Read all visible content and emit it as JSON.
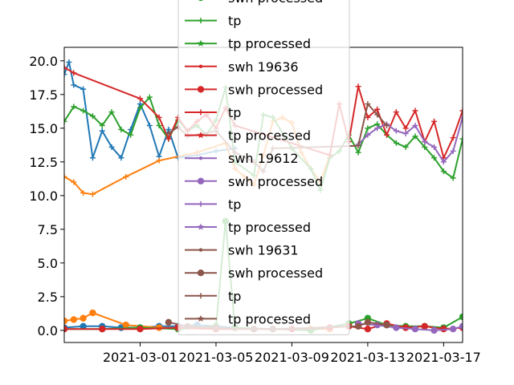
{
  "chart_data": {
    "type": "line",
    "title": "",
    "xlabel": "",
    "ylabel": "",
    "xlim": [
      "2021-02-25",
      "2021-03-18"
    ],
    "ylim": [
      -0.9,
      21.0
    ],
    "grid": false,
    "legend_position": "center (overlapping plot)",
    "x_ticks": [
      "2021-03-01",
      "2021-03-05",
      "2021-03-09",
      "2021-03-13",
      "2021-03-17"
    ],
    "y_ticks": [
      "0.0",
      "2.5",
      "5.0",
      "7.5",
      "10.0",
      "12.5",
      "15.0",
      "17.5",
      "20.0"
    ],
    "legend_entries": [
      {
        "label": "swh processed",
        "color": "#2ca02c",
        "marker": "dot"
      },
      {
        "label": "tp",
        "color": "#2ca02c",
        "marker": "plus"
      },
      {
        "label": "tp processed",
        "color": "#2ca02c",
        "marker": "star"
      },
      {
        "label": "swh 19636",
        "color": "#d62728",
        "marker": "small-dot"
      },
      {
        "label": "swh processed",
        "color": "#d62728",
        "marker": "dot"
      },
      {
        "label": "tp",
        "color": "#d62728",
        "marker": "plus"
      },
      {
        "label": "tp processed",
        "color": "#d62728",
        "marker": "star"
      },
      {
        "label": "swh 19612",
        "color": "#9467bd",
        "marker": "small-dot"
      },
      {
        "label": "swh processed",
        "color": "#9467bd",
        "marker": "dot"
      },
      {
        "label": "tp",
        "color": "#9467bd",
        "marker": "plus"
      },
      {
        "label": "tp processed",
        "color": "#9467bd",
        "marker": "star"
      },
      {
        "label": "swh 19631",
        "color": "#8c564b",
        "marker": "small-dot"
      },
      {
        "label": "swh processed",
        "color": "#8c564b",
        "marker": "dot"
      },
      {
        "label": "tp",
        "color": "#8c564b",
        "marker": "plus"
      },
      {
        "label": "tp processed",
        "color": "#8c564b",
        "marker": "star"
      }
    ],
    "series": [
      {
        "color": "#1f77b4",
        "marker": "plus",
        "x": [
          "2021-02-25T00",
          "2021-02-25T06",
          "2021-02-25T12",
          "2021-02-26T00",
          "2021-02-26T12",
          "2021-02-27T00",
          "2021-02-27T12",
          "2021-02-28T00",
          "2021-02-28T12",
          "2021-03-01T00",
          "2021-03-01T12",
          "2021-03-02T00",
          "2021-03-02T12",
          "2021-03-03T00",
          "2021-03-04T00",
          "2021-03-05T00",
          "2021-03-06T00"
        ],
        "y": [
          19.0,
          19.9,
          18.2,
          17.9,
          12.8,
          14.8,
          13.6,
          12.8,
          14.9,
          16.8,
          15.2,
          12.9,
          14.9,
          12.8,
          13.0,
          13.3,
          13.5
        ]
      },
      {
        "color": "#ff7f0e",
        "marker": "plus",
        "x": [
          "2021-02-25T00",
          "2021-02-25T12",
          "2021-02-26T00",
          "2021-02-26T12",
          "2021-02-28T06",
          "2021-03-02T00",
          "2021-03-04T00",
          "2021-03-05T12",
          "2021-03-06T00",
          "2021-03-06T12",
          "2021-03-07T00",
          "2021-03-07T12",
          "2021-03-08T00",
          "2021-03-08T12",
          "2021-03-09T00",
          "2021-03-09T12",
          "2021-03-10T00",
          "2021-03-10T12",
          "2021-03-11T00"
        ],
        "y": [
          11.4,
          11.0,
          10.2,
          10.1,
          11.4,
          12.6,
          13.2,
          13.9,
          12.0,
          11.4,
          10.8,
          13.0,
          15.5,
          15.8,
          15.4,
          13.2,
          12.0,
          11.0,
          13.0
        ]
      },
      {
        "color": "#2ca02c",
        "marker": "plus",
        "x": [
          "2021-02-25T00",
          "2021-02-25T12",
          "2021-02-26T00",
          "2021-02-26T12",
          "2021-02-27T00",
          "2021-02-27T12",
          "2021-02-28T00",
          "2021-02-28T12",
          "2021-03-01T00",
          "2021-03-01T12",
          "2021-03-02T00",
          "2021-03-02T12",
          "2021-03-03T00",
          "2021-03-03T12",
          "2021-03-04T00",
          "2021-03-04T12",
          "2021-03-05T00",
          "2021-03-05T12",
          "2021-03-06T00",
          "2021-03-07T00",
          "2021-03-07T12",
          "2021-03-08T00",
          "2021-03-09T00",
          "2021-03-10T00",
          "2021-03-10T12",
          "2021-03-11T00",
          "2021-03-11T12",
          "2021-03-12T00",
          "2021-03-12T12",
          "2021-03-13T00",
          "2021-03-13T12",
          "2021-03-14T00",
          "2021-03-14T12",
          "2021-03-15T00",
          "2021-03-15T12",
          "2021-03-16T00",
          "2021-03-16T12",
          "2021-03-17T00",
          "2021-03-17T12",
          "2021-03-18T00"
        ],
        "y": [
          15.5,
          16.6,
          16.3,
          15.9,
          15.2,
          16.2,
          14.9,
          14.5,
          16.5,
          17.3,
          15.2,
          14.2,
          15.6,
          14.8,
          15.2,
          14.5,
          15.6,
          18.0,
          12.5,
          11.5,
          16.0,
          15.8,
          13.5,
          12.0,
          10.4,
          12.8,
          13.3,
          14.5,
          13.2,
          15.0,
          15.3,
          14.5,
          13.9,
          13.6,
          14.4,
          13.6,
          12.8,
          11.8,
          11.3,
          14.2
        ]
      },
      {
        "color": "#d62728",
        "marker": "plus",
        "x": [
          "2021-02-25T00",
          "2021-02-25T12",
          "2021-03-01T00",
          "2021-03-02T00",
          "2021-03-02T12",
          "2021-03-03T00",
          "2021-03-03T12",
          "2021-03-04T00",
          "2021-03-04T12",
          "2021-03-05T00",
          "2021-03-05T12",
          "2021-03-06T00",
          "2021-03-11T00",
          "2021-03-11T12",
          "2021-03-12T00",
          "2021-03-12T12",
          "2021-03-13T00",
          "2021-03-13T12",
          "2021-03-14T00",
          "2021-03-14T12",
          "2021-03-15T00",
          "2021-03-15T12",
          "2021-03-16T00",
          "2021-03-16T12",
          "2021-03-17T00",
          "2021-03-17T12",
          "2021-03-18T00"
        ],
        "y": [
          19.5,
          19.1,
          17.2,
          15.8,
          14.2,
          15.8,
          14.8,
          15.5,
          16.0,
          15.0,
          16.5,
          15.2,
          13.0,
          16.8,
          14.0,
          18.1,
          15.8,
          16.4,
          14.5,
          16.2,
          15.0,
          16.3,
          14.0,
          15.5,
          12.8,
          14.3,
          16.3
        ]
      },
      {
        "color": "#9467bd",
        "marker": "plus",
        "x": [
          "2021-03-12T12",
          "2021-03-13T00",
          "2021-03-13T12",
          "2021-03-14T00",
          "2021-03-14T12",
          "2021-03-15T00",
          "2021-03-15T12",
          "2021-03-16T00",
          "2021-03-16T12",
          "2021-03-17T00",
          "2021-03-17T12",
          "2021-03-18T00"
        ],
        "y": [
          13.8,
          14.5,
          15.0,
          15.3,
          14.8,
          14.6,
          15.2,
          14.0,
          13.6,
          12.5,
          13.3,
          15.8
        ]
      },
      {
        "color": "#8c564b",
        "marker": "plus",
        "x": [
          "2021-03-02T12",
          "2021-03-03T00",
          "2021-03-03T12",
          "2021-03-05T00",
          "2021-03-06T00",
          "2021-03-07T00",
          "2021-03-07T12",
          "2021-03-08T00",
          "2021-03-12T12",
          "2021-03-13T00",
          "2021-03-13T12",
          "2021-03-14T00"
        ],
        "y": [
          14.6,
          15.1,
          14.4,
          14.8,
          13.2,
          12.5,
          11.8,
          13.5,
          13.7,
          16.8,
          16.0,
          15.2
        ]
      },
      {
        "color": "#1f77b4",
        "marker": "dot",
        "x": [
          "2021-02-25T00",
          "2021-02-26T00",
          "2021-02-27T00",
          "2021-02-28T00",
          "2021-03-01T00",
          "2021-03-02T00",
          "2021-03-03T00",
          "2021-03-04T00",
          "2021-03-05T00",
          "2021-03-06T00"
        ],
        "y": [
          0.2,
          0.3,
          0.3,
          0.2,
          0.2,
          0.3,
          0.3,
          0.4,
          0.3,
          0.2
        ]
      },
      {
        "color": "#ff7f0e",
        "marker": "dot",
        "x": [
          "2021-02-25T00",
          "2021-02-25T12",
          "2021-02-26T00",
          "2021-02-26T12",
          "2021-02-28T06",
          "2021-03-02T00",
          "2021-03-05T00",
          "2021-03-08T00",
          "2021-03-10T00",
          "2021-03-11T00"
        ],
        "y": [
          0.7,
          0.8,
          0.9,
          1.3,
          0.4,
          0.2,
          0.1,
          0.1,
          0.1,
          0.1
        ]
      },
      {
        "color": "#2ca02c",
        "marker": "dot",
        "x": [
          "2021-02-25T00",
          "2021-02-27T00",
          "2021-03-01T00",
          "2021-03-03T00",
          "2021-03-05T00",
          "2021-03-05T12",
          "2021-03-06T00",
          "2021-03-08T00",
          "2021-03-10T00",
          "2021-03-12T00",
          "2021-03-13T00",
          "2021-03-14T00",
          "2021-03-15T00",
          "2021-03-16T00",
          "2021-03-17T00",
          "2021-03-18T00"
        ],
        "y": [
          0.1,
          0.1,
          0.2,
          0.1,
          0.3,
          8.1,
          0.2,
          0.1,
          0.0,
          0.5,
          0.9,
          0.4,
          0.3,
          0.3,
          0.2,
          1.0
        ]
      },
      {
        "color": "#d62728",
        "marker": "dot",
        "x": [
          "2021-02-25T00",
          "2021-02-27T00",
          "2021-03-01T00",
          "2021-03-03T00",
          "2021-03-05T00",
          "2021-03-07T00",
          "2021-03-09T00",
          "2021-03-11T00",
          "2021-03-12T00",
          "2021-03-13T00",
          "2021-03-14T00",
          "2021-03-15T00",
          "2021-03-16T00",
          "2021-03-17T00",
          "2021-03-18T00"
        ],
        "y": [
          0.1,
          0.1,
          0.1,
          0.2,
          0.1,
          0.1,
          0.1,
          0.2,
          0.3,
          0.1,
          0.5,
          0.2,
          0.3,
          0.1,
          0.2
        ]
      },
      {
        "color": "#9467bd",
        "marker": "dot",
        "x": [
          "2021-03-12T12",
          "2021-03-13T12",
          "2021-03-14T12",
          "2021-03-15T12",
          "2021-03-16T12",
          "2021-03-17T12",
          "2021-03-18T00"
        ],
        "y": [
          0.5,
          0.4,
          0.2,
          0.1,
          0.0,
          0.1,
          0.3
        ]
      },
      {
        "color": "#8c564b",
        "marker": "dot",
        "x": [
          "2021-03-02T12",
          "2021-03-03T12",
          "2021-03-05T00",
          "2021-03-07T00",
          "2021-03-08T00",
          "2021-03-12T12",
          "2021-03-13T00",
          "2021-03-14T00"
        ],
        "y": [
          0.6,
          0.3,
          0.2,
          0.1,
          0.1,
          0.3,
          0.6,
          0.4
        ]
      }
    ]
  }
}
